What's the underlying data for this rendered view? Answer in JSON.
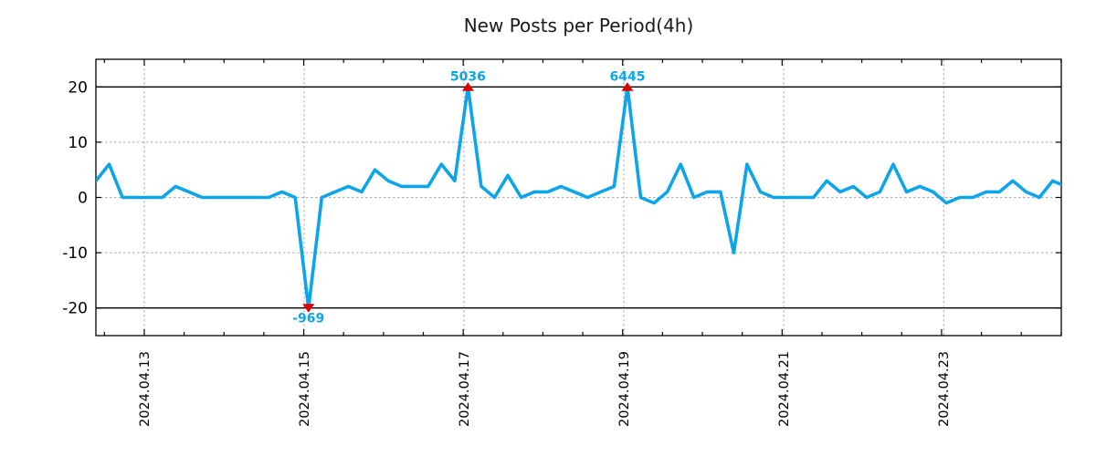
{
  "title": "New Posts per Period(4h)",
  "colors": {
    "line": "#0da5ea",
    "annotation_text": "#0da5ea",
    "clip_marker": "#dd0000",
    "grid": "#ababab",
    "axis": "#000000",
    "clip_line": "#000000",
    "background": "#ffffff",
    "title_text": "#1a1a1a"
  },
  "chart_data": {
    "type": "line",
    "title": "New Posts per Period(4h)",
    "xlabel": "",
    "ylabel": "",
    "period_hours": 4,
    "grid": true,
    "legend": false,
    "ylim": [
      -25,
      25
    ],
    "y_ticks": [
      20,
      10,
      0,
      -10,
      -20
    ],
    "y_tick_labels": [
      "20",
      "10",
      "0",
      "-10",
      "-20"
    ],
    "y_gridline_values": [
      10,
      0,
      -10
    ],
    "clip_line_values": [
      20,
      -20
    ],
    "x_tick_labels": [
      "2024.04.13",
      "2024.04.15",
      "2024.04.17",
      "2024.04.19",
      "2024.04.21",
      "2024.04.23"
    ],
    "x_tick_indices": [
      3.64,
      15.67,
      27.7,
      39.73,
      51.76,
      63.8
    ],
    "x_minor_tick_step_indices": 3,
    "x_range_indices": [
      0,
      72.65
    ],
    "values_clipped": [
      3,
      6,
      0,
      0,
      0,
      0,
      2,
      1,
      0,
      0,
      0,
      0,
      0,
      0,
      1,
      0,
      -20,
      0,
      1,
      2,
      1,
      5,
      3,
      2,
      2,
      2,
      6,
      3,
      20,
      2,
      0,
      4,
      0,
      1,
      1,
      2,
      1,
      0,
      1,
      2,
      20,
      0,
      -1,
      1,
      6,
      0,
      1,
      1,
      -10,
      6,
      1,
      0,
      0,
      0,
      0,
      3,
      1,
      2,
      0,
      1,
      6,
      1,
      2,
      1,
      -1,
      0,
      0,
      1,
      1,
      3,
      1,
      0,
      3,
      2
    ],
    "annotations": [
      {
        "label": "-969",
        "value": -969,
        "index": 16,
        "clipped_at": -20,
        "marker": "triangle-down"
      },
      {
        "label": "5036",
        "value": 5036,
        "index": 28,
        "clipped_at": 20,
        "marker": "triangle-up"
      },
      {
        "label": "6445",
        "value": 6445,
        "index": 40,
        "clipped_at": 20,
        "marker": "triangle-up"
      }
    ]
  }
}
